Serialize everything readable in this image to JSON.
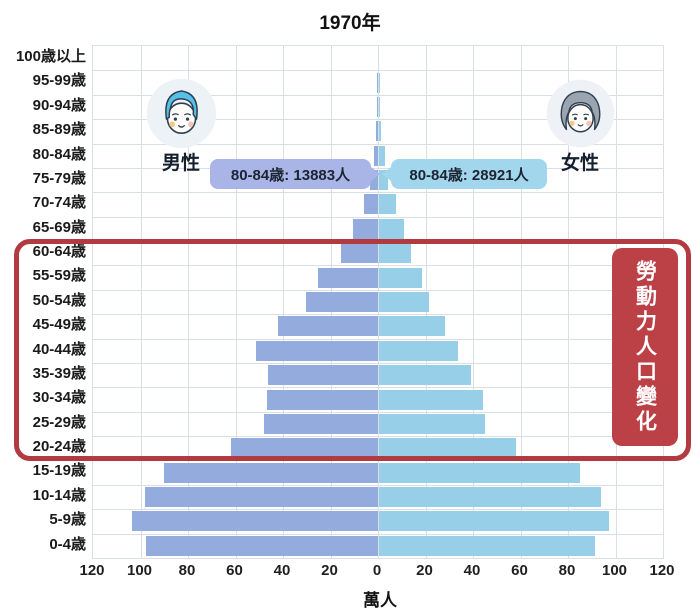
{
  "title": "1970年",
  "legend": {
    "male_label": "男性",
    "female_label": "女性"
  },
  "tooltips": {
    "male": "80-84歳: 13883人",
    "female": "80-84歳: 28921人"
  },
  "annotation": {
    "label": "勞動力人口變化"
  },
  "axis": {
    "unit_label": "萬人",
    "tick_values": [
      120,
      100,
      80,
      60,
      40,
      20,
      0,
      20,
      40,
      60,
      80,
      100,
      120
    ]
  },
  "colors": {
    "male_bar": "#93abdd",
    "female_bar": "#97cfe9",
    "male_tooltip_bg": "#a8b5e6",
    "female_tooltip_bg": "#a2d6ec",
    "annotation_border": "#b23b42",
    "annotation_label_bg": "#bc4147",
    "gridline": "#dadfe4"
  },
  "chart_data": {
    "type": "bar",
    "variant": "population-pyramid",
    "title": "1970年",
    "unit": "萬人",
    "xlabel": "萬人",
    "xlim_each_side": [
      0,
      120
    ],
    "x_ticks": [
      120,
      100,
      80,
      60,
      40,
      20,
      0,
      20,
      40,
      60,
      80,
      100,
      120
    ],
    "grid": true,
    "categories": [
      "100歳以上",
      "95-99歳",
      "90-94歳",
      "85-89歳",
      "80-84歳",
      "75-79歳",
      "70-74歳",
      "65-69歳",
      "60-64歳",
      "55-59歳",
      "50-54歳",
      "45-49歳",
      "40-44歳",
      "35-39歳",
      "30-34歳",
      "25-29歳",
      "20-24歳",
      "15-19歳",
      "10-14歳",
      "5-9歳",
      "0-4歳"
    ],
    "series": [
      {
        "name": "男性",
        "side": "left",
        "values": [
          0,
          0.05,
          0.2,
          0.6,
          1.39,
          3.0,
          5.8,
          10.4,
          15.5,
          25,
          30,
          42,
          51,
          46,
          46.5,
          48,
          61.5,
          90,
          98,
          103.5,
          97.5
        ]
      },
      {
        "name": "女性",
        "side": "right",
        "values": [
          0,
          0.1,
          0.35,
          1.1,
          2.89,
          4.2,
          7.5,
          10.8,
          13.8,
          18.4,
          21.4,
          28,
          33.5,
          39,
          44,
          45,
          58,
          85,
          93.5,
          97,
          91
        ]
      }
    ],
    "callouts": [
      {
        "category": "80-84歳",
        "series": "男性",
        "text": "80-84歳: 13883人"
      },
      {
        "category": "80-84歳",
        "series": "女性",
        "text": "80-84歳: 28921人"
      }
    ],
    "highlight_range": {
      "from": "60-64歳",
      "to": "20-24歳",
      "label": "勞動力人口變化"
    }
  }
}
